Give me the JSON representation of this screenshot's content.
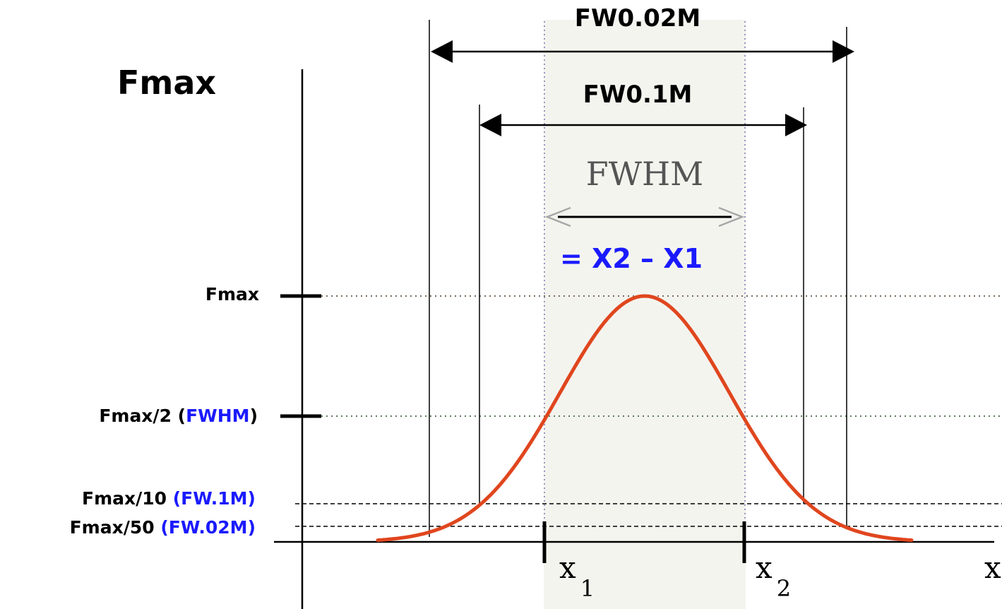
{
  "colors": {
    "curve": "#e0461e",
    "highlight_text": "#1a1aff",
    "ink": "#000000",
    "fwhm_band": "#f4f4ef",
    "fwhm_arrow": "#a7a7a7"
  },
  "diagram": {
    "corner_title": "Fmax",
    "top_arrows": {
      "fw002m": "FW0.02M",
      "fw01m": "FW0.1M",
      "fwhm": "FWHM"
    },
    "fwhm_formula": "= X2 – X1",
    "levels": {
      "fmax": {
        "label": "Fmax"
      },
      "half": {
        "label": "Fmax/2 (",
        "highlight": "FWHM",
        "suffix": ")"
      },
      "tenth": {
        "label": "Fmax/10 ",
        "highlight": "(FW.1M)"
      },
      "fiftieth": {
        "label": "Fmax/50 ",
        "highlight": "(FW.02M)"
      }
    },
    "x_axis": {
      "x1_label": "x",
      "x1_sub": "1",
      "x2_label": "x",
      "x2_sub": "2",
      "axis_label": "x"
    }
  }
}
